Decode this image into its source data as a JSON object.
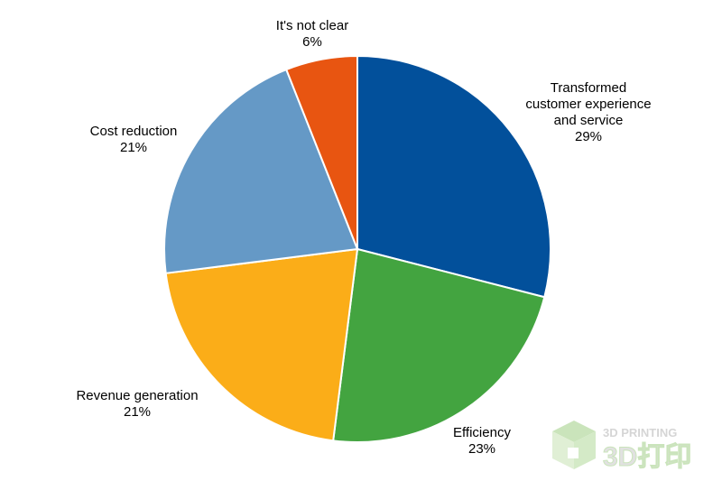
{
  "chart_data": {
    "type": "pie",
    "title": "",
    "slices": [
      {
        "label": [
          "Transformed",
          "customer experience",
          "and service"
        ],
        "value": 29,
        "value_label": "29%",
        "color": "#02509B"
      },
      {
        "label": [
          "Efficiency"
        ],
        "value": 23,
        "value_label": "23%",
        "color": "#43A440"
      },
      {
        "label": [
          "Revenue generation"
        ],
        "value": 21,
        "value_label": "21%",
        "color": "#FBAD18"
      },
      {
        "label": [
          "Cost reduction"
        ],
        "value": 21,
        "value_label": "21%",
        "color": "#6599C6"
      },
      {
        "label": [
          "It's not clear"
        ],
        "value": 6,
        "value_label": "6%",
        "color": "#E85511"
      }
    ],
    "start_angle_deg": 0,
    "direction": "clockwise",
    "legend": "none"
  },
  "watermark": {
    "line1": "3D PRINTING",
    "line2": "3D打印"
  }
}
